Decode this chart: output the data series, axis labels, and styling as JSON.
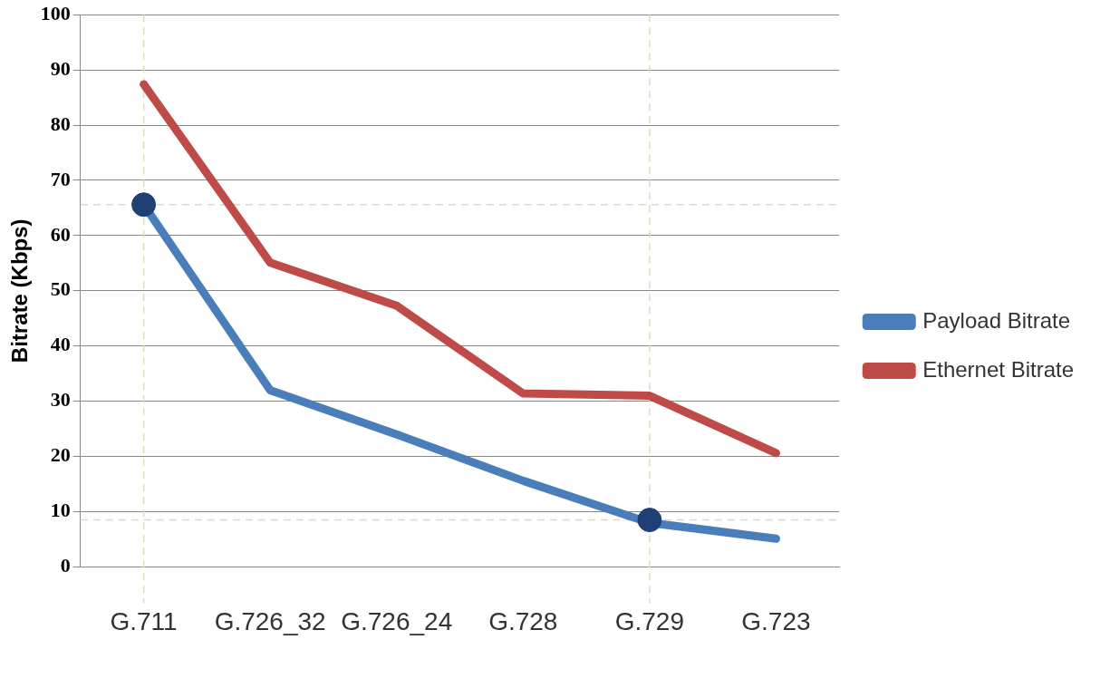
{
  "chart_data": {
    "type": "line",
    "ylabel": "Bitrate (Kbps)",
    "categories": [
      "G.711",
      "G.726_32",
      "G.726_24",
      "G.728",
      "G.729",
      "G.723"
    ],
    "series": [
      {
        "name": "Payload Bitrate",
        "color": "#4a7ebb",
        "values": [
          65.6,
          32,
          24,
          15.6,
          8,
          5.1
        ]
      },
      {
        "name": "Ethernet Bitrate",
        "color": "#be4b48",
        "values": [
          87.4,
          55.1,
          47.3,
          31.4,
          31,
          20.6
        ]
      },
      {
        "type": "scatter",
        "marker": "circle",
        "color": "#1f3f75",
        "values": [
          65.6,
          null,
          null,
          null,
          8.5,
          null
        ]
      }
    ],
    "ylim": [
      0,
      100
    ],
    "yticks": [
      0,
      10,
      20,
      30,
      40,
      50,
      60,
      70,
      80,
      90,
      100
    ],
    "grid": "y",
    "legend": "right",
    "marker": "none",
    "ref_lines": [
      {
        "axis": "y",
        "value": 65.6,
        "color": "#e0d8c0",
        "line_style": "dashed"
      },
      {
        "axis": "y",
        "value": 8.5,
        "color": "#e0d8c0",
        "line_style": "dashed"
      },
      {
        "axis": "x",
        "value": "G.711",
        "color": "#e0d8c0",
        "line_style": "dashed"
      },
      {
        "axis": "x",
        "value": "G.729",
        "color": "#e0d8c0",
        "line_style": "dashed"
      }
    ]
  }
}
